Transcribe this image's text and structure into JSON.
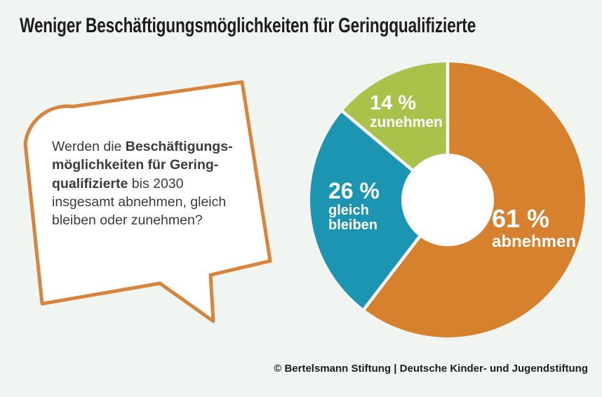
{
  "page": {
    "background_color": "#f1f5f1"
  },
  "header": {
    "title": "Weniger Beschäftigungsmöglichkeiten für Geringqualifizierte"
  },
  "question_bubble": {
    "border_color": "#d7853c",
    "fill_color": "#ffffff",
    "text_color": "#3b3b39",
    "lines": [
      [
        {
          "text": "Werden die ",
          "bold": false
        },
        {
          "text": "Beschäftigungs-",
          "bold": true
        }
      ],
      [
        {
          "text": "möglichkeiten für Gering-",
          "bold": true
        }
      ],
      [
        {
          "text": "qualifizierte",
          "bold": true
        },
        {
          "text": " bis 2030",
          "bold": false
        }
      ],
      [
        {
          "text": "insgesamt abnehmen, gleich",
          "bold": false
        }
      ],
      [
        {
          "text": "bleiben oder zunehmen?",
          "bold": false
        }
      ]
    ]
  },
  "chart_data": {
    "type": "pie",
    "subtype": "donut",
    "title": "",
    "unit": "%",
    "start_angle_deg": 0,
    "clockwise": true,
    "segments": [
      {
        "label": "abnehmen",
        "value": 61,
        "display": "61 %",
        "color": "#d5812e",
        "label_lines": [
          "abnehmen"
        ]
      },
      {
        "label": "gleich bleiben",
        "value": 26,
        "display": "26 %",
        "color": "#1b95b1",
        "label_lines": [
          "gleich",
          "bleiben"
        ]
      },
      {
        "label": "zunehmen",
        "value": 14,
        "display": "14 %",
        "color": "#a9c24a",
        "label_lines": [
          "zunehmen"
        ]
      }
    ],
    "donut_hole_color": "#ffffff",
    "separator_color": "#ffffff"
  },
  "footer": {
    "credit": "© Bertelsmann Stiftung | Deutsche Kinder- und Jugendstiftung"
  }
}
